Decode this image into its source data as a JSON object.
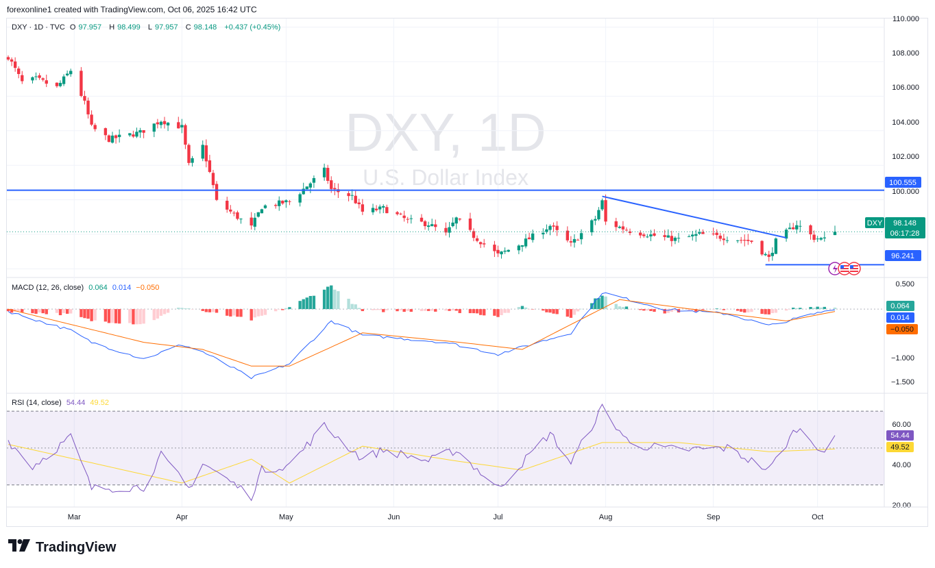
{
  "header": {
    "caption": "forexonline1 created with TradingView.com, Oct 06, 2025 16:42 UTC"
  },
  "legend": {
    "symbol": "DXY · 1D · TVC",
    "o_label": "O",
    "o": "97.957",
    "h_label": "H",
    "h": "98.499",
    "l_label": "L",
    "l": "97.957",
    "c_label": "C",
    "c": "98.148",
    "change": "+0.437 (+0.45%)"
  },
  "watermark": {
    "symbol": "DXY, 1D",
    "name": "U.S. Dollar Index"
  },
  "price_axis": {
    "ticks": [
      "110.000",
      "108.000",
      "106.000",
      "104.000",
      "102.000",
      "100.000"
    ]
  },
  "price_labels": {
    "resistance": "100.555",
    "support": "96.241",
    "ticker": "DXY",
    "last": "98.148",
    "countdown": "06:17:28"
  },
  "macd_legend": {
    "name": "MACD (12, 26, close)",
    "hist": "0.064",
    "macd": "0.014",
    "signal": "−0.050"
  },
  "macd_axis": {
    "ticks": [
      "0.500",
      "−1.000",
      "−1.500"
    ]
  },
  "macd_labels": {
    "hist": "0.064",
    "macd": "0.014",
    "signal": "−0.050"
  },
  "rsi_legend": {
    "name": "RSI (14, close)",
    "rsi": "54.44",
    "ma": "49.52"
  },
  "rsi_axis": {
    "ticks": [
      "60.00",
      "40.00",
      "20.00"
    ]
  },
  "rsi_labels": {
    "rsi": "54.44",
    "ma": "49.52"
  },
  "time_axis": {
    "ticks": [
      "Mar",
      "Apr",
      "May",
      "Jun",
      "Jul",
      "Aug",
      "Sep",
      "Oct"
    ]
  },
  "brand": {
    "name": "TradingView"
  },
  "colors": {
    "up": "#089981",
    "down": "#f23645",
    "line": "#2962ff",
    "macd": "#2962ff",
    "signal": "#ff6d00",
    "rsi": "#7e57c2",
    "rsi_ma": "#fdd835"
  },
  "chart_data": [
    {
      "type": "candlestick",
      "title": "DXY, 1D",
      "subtitle": "U.S. Dollar Index",
      "ylim": [
        95.5,
        110.5
      ],
      "anchors": [
        {
          "date": "2025-02-10",
          "close": 108.3
        },
        {
          "date": "2025-02-14",
          "close": 106.8
        },
        {
          "date": "2025-02-18",
          "close": 107.0
        },
        {
          "date": "2025-02-24",
          "close": 106.5
        },
        {
          "date": "2025-02-28",
          "close": 107.5
        },
        {
          "date": "2025-03-04",
          "close": 105.6
        },
        {
          "date": "2025-03-06",
          "close": 104.2
        },
        {
          "date": "2025-03-11",
          "close": 103.5
        },
        {
          "date": "2025-03-20",
          "close": 103.9
        },
        {
          "date": "2025-03-26",
          "close": 104.6
        },
        {
          "date": "2025-04-01",
          "close": 104.2
        },
        {
          "date": "2025-04-03",
          "close": 102.0
        },
        {
          "date": "2025-04-07",
          "close": 103.1
        },
        {
          "date": "2025-04-10",
          "close": 100.8
        },
        {
          "date": "2025-04-11",
          "close": 99.9
        },
        {
          "date": "2025-04-21",
          "close": 98.4
        },
        {
          "date": "2025-04-24",
          "close": 99.6
        },
        {
          "date": "2025-05-02",
          "close": 99.9
        },
        {
          "date": "2025-05-12",
          "close": 101.7
        },
        {
          "date": "2025-05-14",
          "close": 100.6
        },
        {
          "date": "2025-05-20",
          "close": 100.2
        },
        {
          "date": "2025-05-23",
          "close": 99.3
        },
        {
          "date": "2025-05-29",
          "close": 99.5
        },
        {
          "date": "2025-06-05",
          "close": 98.8
        },
        {
          "date": "2025-06-11",
          "close": 98.6
        },
        {
          "date": "2025-06-16",
          "close": 98.0
        },
        {
          "date": "2025-06-19",
          "close": 98.9
        },
        {
          "date": "2025-06-24",
          "close": 97.9
        },
        {
          "date": "2025-07-01",
          "close": 96.8
        },
        {
          "date": "2025-07-08",
          "close": 97.5
        },
        {
          "date": "2025-07-16",
          "close": 98.5
        },
        {
          "date": "2025-07-22",
          "close": 97.4
        },
        {
          "date": "2025-07-29",
          "close": 98.9
        },
        {
          "date": "2025-07-31",
          "close": 99.9
        },
        {
          "date": "2025-08-01",
          "close": 98.7
        },
        {
          "date": "2025-08-08",
          "close": 98.2
        },
        {
          "date": "2025-08-18",
          "close": 97.8
        },
        {
          "date": "2025-08-22",
          "close": 97.7
        },
        {
          "date": "2025-08-28",
          "close": 98.0
        },
        {
          "date": "2025-09-05",
          "close": 97.8
        },
        {
          "date": "2025-09-12",
          "close": 97.6
        },
        {
          "date": "2025-09-17",
          "close": 96.6
        },
        {
          "date": "2025-09-19",
          "close": 97.6
        },
        {
          "date": "2025-09-25",
          "close": 98.6
        },
        {
          "date": "2025-09-30",
          "close": 97.8
        },
        {
          "date": "2025-10-03",
          "close": 97.7
        },
        {
          "date": "2025-10-06",
          "close": 98.148
        }
      ],
      "last": {
        "open": 97.957,
        "high": 98.499,
        "low": 97.957,
        "close": 98.148
      },
      "lines": [
        {
          "kind": "horizontal",
          "value": 100.555
        },
        {
          "kind": "horizontal",
          "value": 96.241,
          "from": "2025-09-16"
        },
        {
          "kind": "trend",
          "from": {
            "date": "2025-07-31",
            "value": 100.2
          },
          "to": {
            "date": "2025-09-22",
            "value": 97.8
          }
        }
      ]
    },
    {
      "type": "histogram+line",
      "title": "MACD (12, 26, close)",
      "ylim": [
        -1.6,
        0.55
      ],
      "series": [
        {
          "name": "Histogram",
          "value": 0.064
        },
        {
          "name": "MACD",
          "value": 0.014
        },
        {
          "name": "Signal",
          "value": -0.05
        }
      ],
      "macd_anchors": [
        {
          "date": "2025-02-10",
          "value": -0.05
        },
        {
          "date": "2025-02-28",
          "value": -0.45
        },
        {
          "date": "2025-03-06",
          "value": -0.7
        },
        {
          "date": "2025-03-21",
          "value": -1.05
        },
        {
          "date": "2025-04-01",
          "value": -0.75
        },
        {
          "date": "2025-04-07",
          "value": -0.9
        },
        {
          "date": "2025-04-21",
          "value": -1.45
        },
        {
          "date": "2025-05-02",
          "value": -1.15
        },
        {
          "date": "2025-05-14",
          "value": -0.25
        },
        {
          "date": "2025-05-23",
          "value": -0.55
        },
        {
          "date": "2025-06-16",
          "value": -0.7
        },
        {
          "date": "2025-07-01",
          "value": -0.95
        },
        {
          "date": "2025-07-22",
          "value": -0.5
        },
        {
          "date": "2025-07-31",
          "value": 0.35
        },
        {
          "date": "2025-08-18",
          "value": 0.0
        },
        {
          "date": "2025-09-05",
          "value": -0.1
        },
        {
          "date": "2025-09-17",
          "value": -0.35
        },
        {
          "date": "2025-10-06",
          "value": 0.014
        }
      ],
      "signal_anchors": [
        {
          "date": "2025-02-10",
          "value": 0.0
        },
        {
          "date": "2025-03-21",
          "value": -0.7
        },
        {
          "date": "2025-04-07",
          "value": -0.85
        },
        {
          "date": "2025-04-21",
          "value": -1.2
        },
        {
          "date": "2025-05-02",
          "value": -1.2
        },
        {
          "date": "2025-05-23",
          "value": -0.5
        },
        {
          "date": "2025-06-20",
          "value": -0.7
        },
        {
          "date": "2025-07-08",
          "value": -0.85
        },
        {
          "date": "2025-08-05",
          "value": 0.2
        },
        {
          "date": "2025-09-05",
          "value": -0.1
        },
        {
          "date": "2025-09-22",
          "value": -0.25
        },
        {
          "date": "2025-10-06",
          "value": -0.05
        }
      ]
    },
    {
      "type": "line",
      "title": "RSI (14, close)",
      "ylim": [
        18,
        76
      ],
      "bands": [
        30,
        70
      ],
      "midline": 50,
      "series": [
        {
          "name": "RSI",
          "value": 54.44
        },
        {
          "name": "RSI-based MA",
          "value": 49.52
        }
      ],
      "rsi_anchors": [
        {
          "date": "2025-02-10",
          "value": 54
        },
        {
          "date": "2025-02-17",
          "value": 40
        },
        {
          "date": "2025-02-28",
          "value": 56
        },
        {
          "date": "2025-03-06",
          "value": 28
        },
        {
          "date": "2025-03-21",
          "value": 29
        },
        {
          "date": "2025-03-26",
          "value": 46
        },
        {
          "date": "2025-04-03",
          "value": 28
        },
        {
          "date": "2025-04-07",
          "value": 42
        },
        {
          "date": "2025-04-21",
          "value": 24
        },
        {
          "date": "2025-04-24",
          "value": 38
        },
        {
          "date": "2025-05-02",
          "value": 41
        },
        {
          "date": "2025-05-12",
          "value": 62
        },
        {
          "date": "2025-05-23",
          "value": 44
        },
        {
          "date": "2025-05-29",
          "value": 49
        },
        {
          "date": "2025-06-11",
          "value": 43
        },
        {
          "date": "2025-06-19",
          "value": 49
        },
        {
          "date": "2025-07-01",
          "value": 28
        },
        {
          "date": "2025-07-16",
          "value": 58
        },
        {
          "date": "2025-07-22",
          "value": 42
        },
        {
          "date": "2025-07-31",
          "value": 72
        },
        {
          "date": "2025-08-08",
          "value": 52
        },
        {
          "date": "2025-08-22",
          "value": 49
        },
        {
          "date": "2025-09-05",
          "value": 50
        },
        {
          "date": "2025-09-17",
          "value": 38
        },
        {
          "date": "2025-09-25",
          "value": 61
        },
        {
          "date": "2025-10-03",
          "value": 48
        },
        {
          "date": "2025-10-06",
          "value": 54.44
        }
      ],
      "ma_anchors": [
        {
          "date": "2025-02-10",
          "value": 52
        },
        {
          "date": "2025-03-06",
          "value": 42
        },
        {
          "date": "2025-04-01",
          "value": 31
        },
        {
          "date": "2025-04-21",
          "value": 44
        },
        {
          "date": "2025-05-02",
          "value": 31
        },
        {
          "date": "2025-05-23",
          "value": 51
        },
        {
          "date": "2025-06-19",
          "value": 43
        },
        {
          "date": "2025-07-08",
          "value": 38
        },
        {
          "date": "2025-07-31",
          "value": 53
        },
        {
          "date": "2025-08-22",
          "value": 53
        },
        {
          "date": "2025-09-17",
          "value": 48
        },
        {
          "date": "2025-10-06",
          "value": 49.52
        }
      ]
    }
  ]
}
